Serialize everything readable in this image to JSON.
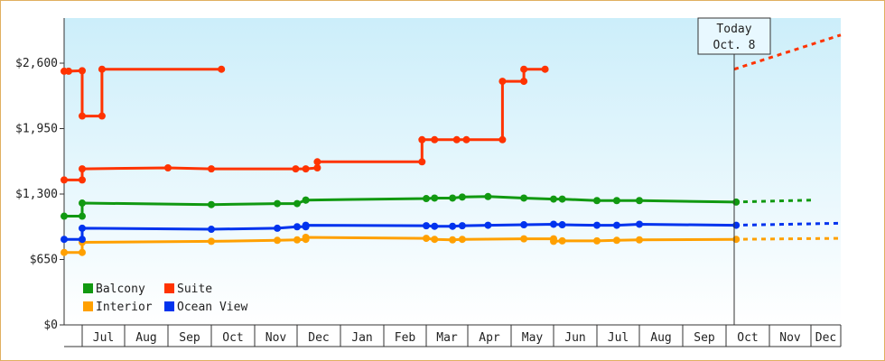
{
  "chart_data": {
    "type": "line",
    "title": "",
    "xlabel": "",
    "ylabel": "",
    "y_ticks": [
      "$0",
      "$650",
      "$1,300",
      "$1,950",
      "$2,600"
    ],
    "ylim": [
      0,
      2600
    ],
    "x_ticks": [
      "Jul",
      "Aug",
      "Sep",
      "Oct",
      "Nov",
      "Dec",
      "Jan",
      "Feb",
      "Mar",
      "Apr",
      "May",
      "Jun",
      "Jul",
      "Aug",
      "Sep",
      "Oct",
      "Nov",
      "Dec"
    ],
    "today_label": [
      "Today",
      "Oct. 8"
    ],
    "legend_placement": "bottom-left",
    "grid": true,
    "colors": {
      "plot_bg_top": "#cceefa",
      "plot_bg_bottom": "#ffffff",
      "frame": "#e0b060"
    },
    "series": [
      {
        "name": "Balcony",
        "color": "#119911",
        "points": [
          [
            "Jun 1",
            1080
          ],
          [
            "Jun 25",
            1080
          ],
          [
            "Jun 25",
            1210
          ],
          [
            "Oct 1",
            1195
          ],
          [
            "Nov 17",
            1205
          ],
          [
            "Dec 1",
            1205
          ],
          [
            "Dec 7",
            1240
          ],
          [
            "Dec 7",
            1240
          ],
          [
            "Mar 1",
            1255
          ],
          [
            "Mar 7",
            1260
          ],
          [
            "Mar 20",
            1260
          ],
          [
            "Mar 27",
            1270
          ],
          [
            "Apr 15",
            1275
          ],
          [
            "May 10",
            1260
          ],
          [
            "Jun 1",
            1250
          ],
          [
            "Jun 7",
            1250
          ],
          [
            "Jul 1",
            1235
          ],
          [
            "Jul 15",
            1235
          ],
          [
            "Aug 1",
            1235
          ],
          [
            "Oct 8",
            1220
          ]
        ],
        "projection": [
          [
            "Oct 8",
            1220
          ],
          [
            "Dec 20",
            1240
          ]
        ]
      },
      {
        "name": "Suite",
        "color": "#ff3300",
        "points": [
          [
            "Jun 1",
            1440
          ],
          [
            "Jun 25",
            1440
          ],
          [
            "Jun 25",
            1550
          ],
          [
            "Sep 1",
            1560
          ],
          [
            "Oct 1",
            1550
          ],
          [
            "Nov 30",
            1550
          ],
          [
            "Dec 7",
            1550
          ],
          [
            "Dec 15",
            1560
          ],
          [
            "Dec 15",
            1620
          ],
          [
            "Feb 28",
            1620
          ],
          [
            "Feb 28",
            1840
          ],
          [
            "Mar 7",
            1840
          ],
          [
            "Mar 23",
            1840
          ],
          [
            "Mar 30",
            1840
          ],
          [
            "Apr 25",
            1840
          ],
          [
            "Apr 25",
            2420
          ],
          [
            "May 10",
            2420
          ],
          [
            "May 10",
            2540
          ],
          [
            "May 25",
            2540
          ]
        ],
        "points2": [
          [
            "Jun 1",
            2520
          ],
          [
            "Jun 7",
            2520
          ],
          [
            "Jul 1",
            2525
          ],
          [
            "Jul 1",
            2075
          ],
          [
            "Jul 15",
            2075
          ],
          [
            "Jul 15",
            2540
          ],
          [
            "Oct 8",
            2540
          ]
        ],
        "projection": [
          [
            "Oct 8",
            2540
          ],
          [
            "Dec 31",
            2880
          ]
        ]
      },
      {
        "name": "Interior",
        "color": "#ffa000",
        "points": [
          [
            "Jun 1",
            720
          ],
          [
            "Jun 25",
            720
          ],
          [
            "Jun 25",
            820
          ],
          [
            "Oct 1",
            830
          ],
          [
            "Nov 17",
            840
          ],
          [
            "Dec 1",
            845
          ],
          [
            "Dec 7",
            850
          ],
          [
            "Dec 7",
            870
          ],
          [
            "Mar 1",
            860
          ],
          [
            "Mar 7",
            850
          ],
          [
            "Mar 20",
            845
          ],
          [
            "Mar 27",
            850
          ],
          [
            "May 10",
            855
          ],
          [
            "Jun 1",
            855
          ],
          [
            "Jun 1",
            830
          ],
          [
            "Jun 7",
            835
          ],
          [
            "Jul 1",
            835
          ],
          [
            "Jul 15",
            840
          ],
          [
            "Aug 1",
            845
          ],
          [
            "Oct 8",
            850
          ]
        ],
        "projection": [
          [
            "Oct 8",
            850
          ],
          [
            "Dec 31",
            860
          ]
        ]
      },
      {
        "name": "Ocean View",
        "color": "#0033ee",
        "points": [
          [
            "Jun 1",
            850
          ],
          [
            "Jun 25",
            850
          ],
          [
            "Jun 25",
            960
          ],
          [
            "Oct 1",
            950
          ],
          [
            "Nov 17",
            960
          ],
          [
            "Dec 1",
            975
          ],
          [
            "Dec 7",
            975
          ],
          [
            "Dec 7",
            990
          ],
          [
            "Mar 1",
            985
          ],
          [
            "Mar 7",
            980
          ],
          [
            "Mar 20",
            980
          ],
          [
            "Mar 27",
            985
          ],
          [
            "Apr 15",
            990
          ],
          [
            "May 10",
            995
          ],
          [
            "Jun 1",
            1000
          ],
          [
            "Jun 7",
            995
          ],
          [
            "Jul 1",
            990
          ],
          [
            "Jul 15",
            990
          ],
          [
            "Aug 1",
            1000
          ],
          [
            "Oct 8",
            990
          ]
        ],
        "projection": [
          [
            "Oct 8",
            990
          ],
          [
            "Dec 31",
            1010
          ]
        ]
      }
    ]
  }
}
